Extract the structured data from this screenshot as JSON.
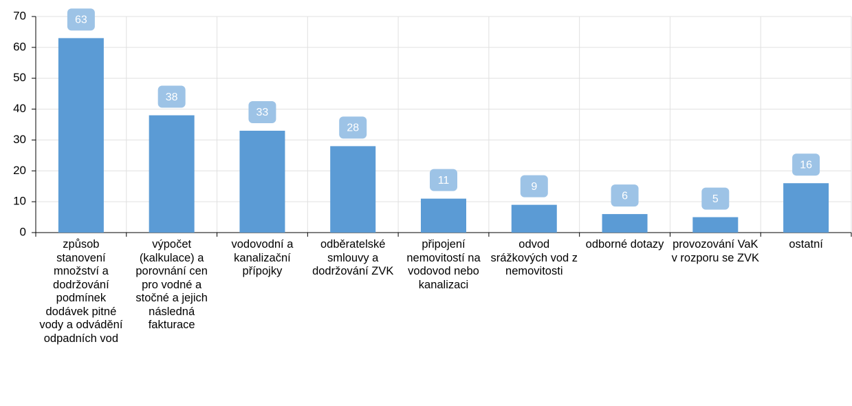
{
  "chart_data": {
    "type": "bar",
    "categories": [
      "způsob stanovení množství a dodržování podmínek dodávek pitné vody a odvádění odpadních vod",
      "výpočet (kalkulace) a porovnání cen pro vodné a stočné a jejich následná fakturace",
      "vodovodní a kanalizační přípojky",
      "odběratelské smlouvy a dodržování ZVK",
      "připojení nemovitostí na vodovod nebo kanalizaci",
      "odvod srážkových vod z nemovitosti",
      "odborné dotazy",
      "provozování VaK v rozporu se ZVK",
      "ostatní"
    ],
    "values": [
      63,
      38,
      33,
      28,
      11,
      9,
      6,
      5,
      16
    ],
    "color": "#5b9bd5",
    "label_color": "#9dc3e6",
    "ylim": [
      0,
      70
    ],
    "yticks": [
      0,
      10,
      20,
      30,
      40,
      50,
      60,
      70
    ],
    "grid": true
  }
}
